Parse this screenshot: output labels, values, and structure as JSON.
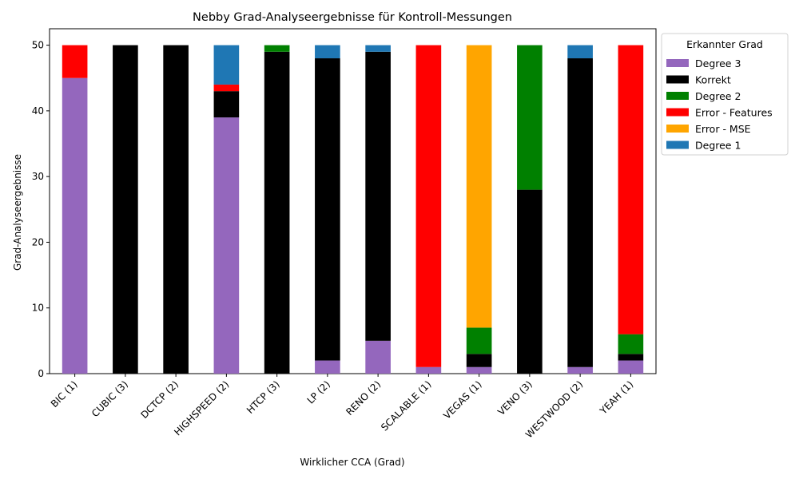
{
  "chart_data": {
    "type": "bar",
    "stacked": true,
    "title": "Nebby Grad-Analyseergebnisse für Kontroll-Messungen",
    "xlabel": "Wirklicher CCA (Grad)",
    "ylabel": "Grad-Analyseergebnisse",
    "ylim": [
      0,
      52.5
    ],
    "yticks": [
      0,
      10,
      20,
      30,
      40,
      50
    ],
    "grid": false,
    "legend_position": "outside-top-right",
    "legend_title": "Erkannter Grad",
    "categories": [
      "BIC (1)",
      "CUBIC (3)",
      "DCTCP (2)",
      "HIGHSPEED (2)",
      "HTCP (3)",
      "LP (2)",
      "RENO (2)",
      "SCALABLE (1)",
      "VEGAS (1)",
      "VENO (3)",
      "WESTWOOD (2)",
      "YEAH (1)"
    ],
    "series": [
      {
        "name": "Degree 3",
        "color": "#9467bd",
        "values": [
          45,
          0,
          0,
          39,
          0,
          2,
          5,
          1,
          1,
          0,
          1,
          2
        ]
      },
      {
        "name": "Korrekt",
        "color": "#000000",
        "values": [
          0,
          50,
          50,
          4,
          49,
          46,
          44,
          0,
          2,
          28,
          47,
          1
        ]
      },
      {
        "name": "Degree 2",
        "color": "#008000",
        "values": [
          0,
          0,
          0,
          0,
          1,
          0,
          0,
          0,
          4,
          22,
          0,
          3
        ]
      },
      {
        "name": "Error - Features",
        "color": "#ff0000",
        "values": [
          5,
          0,
          0,
          1,
          0,
          0,
          0,
          49,
          0,
          0,
          0,
          44
        ]
      },
      {
        "name": "Error - MSE",
        "color": "#ffa500",
        "values": [
          0,
          0,
          0,
          0,
          0,
          0,
          0,
          0,
          43,
          0,
          0,
          0
        ]
      },
      {
        "name": "Degree 1",
        "color": "#1f77b4",
        "values": [
          0,
          0,
          0,
          6,
          0,
          2,
          1,
          0,
          0,
          0,
          2,
          0
        ]
      }
    ]
  }
}
